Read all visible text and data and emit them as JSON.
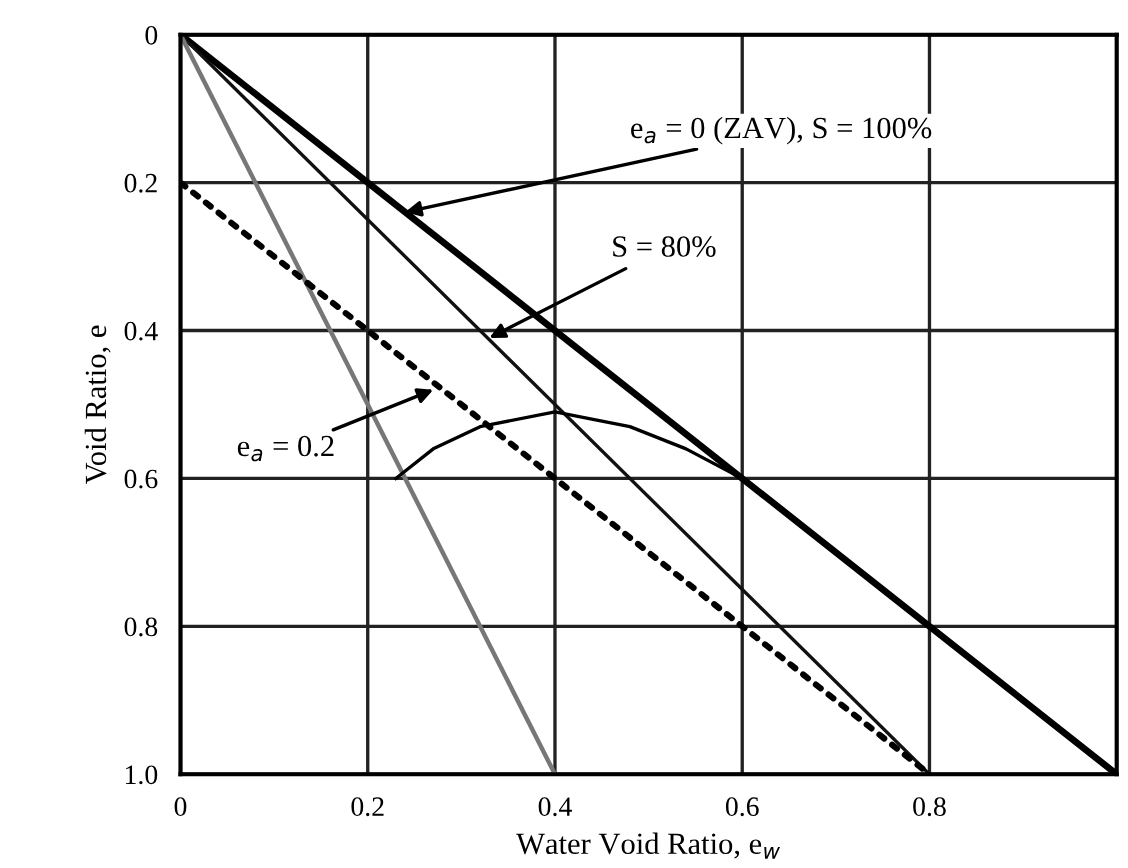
{
  "chart_data": {
    "type": "line",
    "xlabel": "Water Void Ratio, e$_{w}$",
    "ylabel": "Void Ratio, e",
    "series": [
      {
        "x": [
          0,
          1.0
        ],
        "values": [
          0,
          1.0
        ],
        "color": "#000000",
        "line_style": "solid"
      },
      {
        "x": [
          0,
          0.8
        ],
        "values": [
          0,
          1.0
        ],
        "color": "#111111",
        "line_style": "solid"
      },
      {
        "x": [
          0,
          0.4
        ],
        "values": [
          0,
          1.0
        ],
        "color": "#777777",
        "line_style": "solid"
      },
      {
        "x": [
          0,
          0.8
        ],
        "values": [
          0.2,
          1.0
        ],
        "color": "#000000",
        "line_style": "dotted"
      },
      {
        "x": [
          0.23,
          0.27,
          0.32,
          0.4,
          0.48,
          0.54,
          0.6
        ],
        "values": [
          0.6,
          0.56,
          0.53,
          0.51,
          0.53,
          0.56,
          0.6
        ],
        "color": "#000000",
        "line_style": "solid"
      }
    ],
    "annotations": [
      {
        "text": "e$_{a}$ = 0 (ZAV), S = 100%",
        "x": 0.24,
        "y": 0.24
      },
      {
        "text": "S = 80%",
        "x": 0.33,
        "y": 0.41
      },
      {
        "text": "e$_{a}$ = 0.2",
        "x": 0.27,
        "y": 0.48
      }
    ],
    "xlim": [
      0,
      1.0
    ],
    "ylim": [
      1.0,
      0
    ],
    "xticks": [
      0,
      0.2,
      0.4,
      0.6,
      0.8
    ],
    "yticks": [
      0,
      0.2,
      0.4,
      0.6,
      0.8,
      {
        "value": 1.0,
        "label": "1.0"
      }
    ],
    "grid": true
  }
}
